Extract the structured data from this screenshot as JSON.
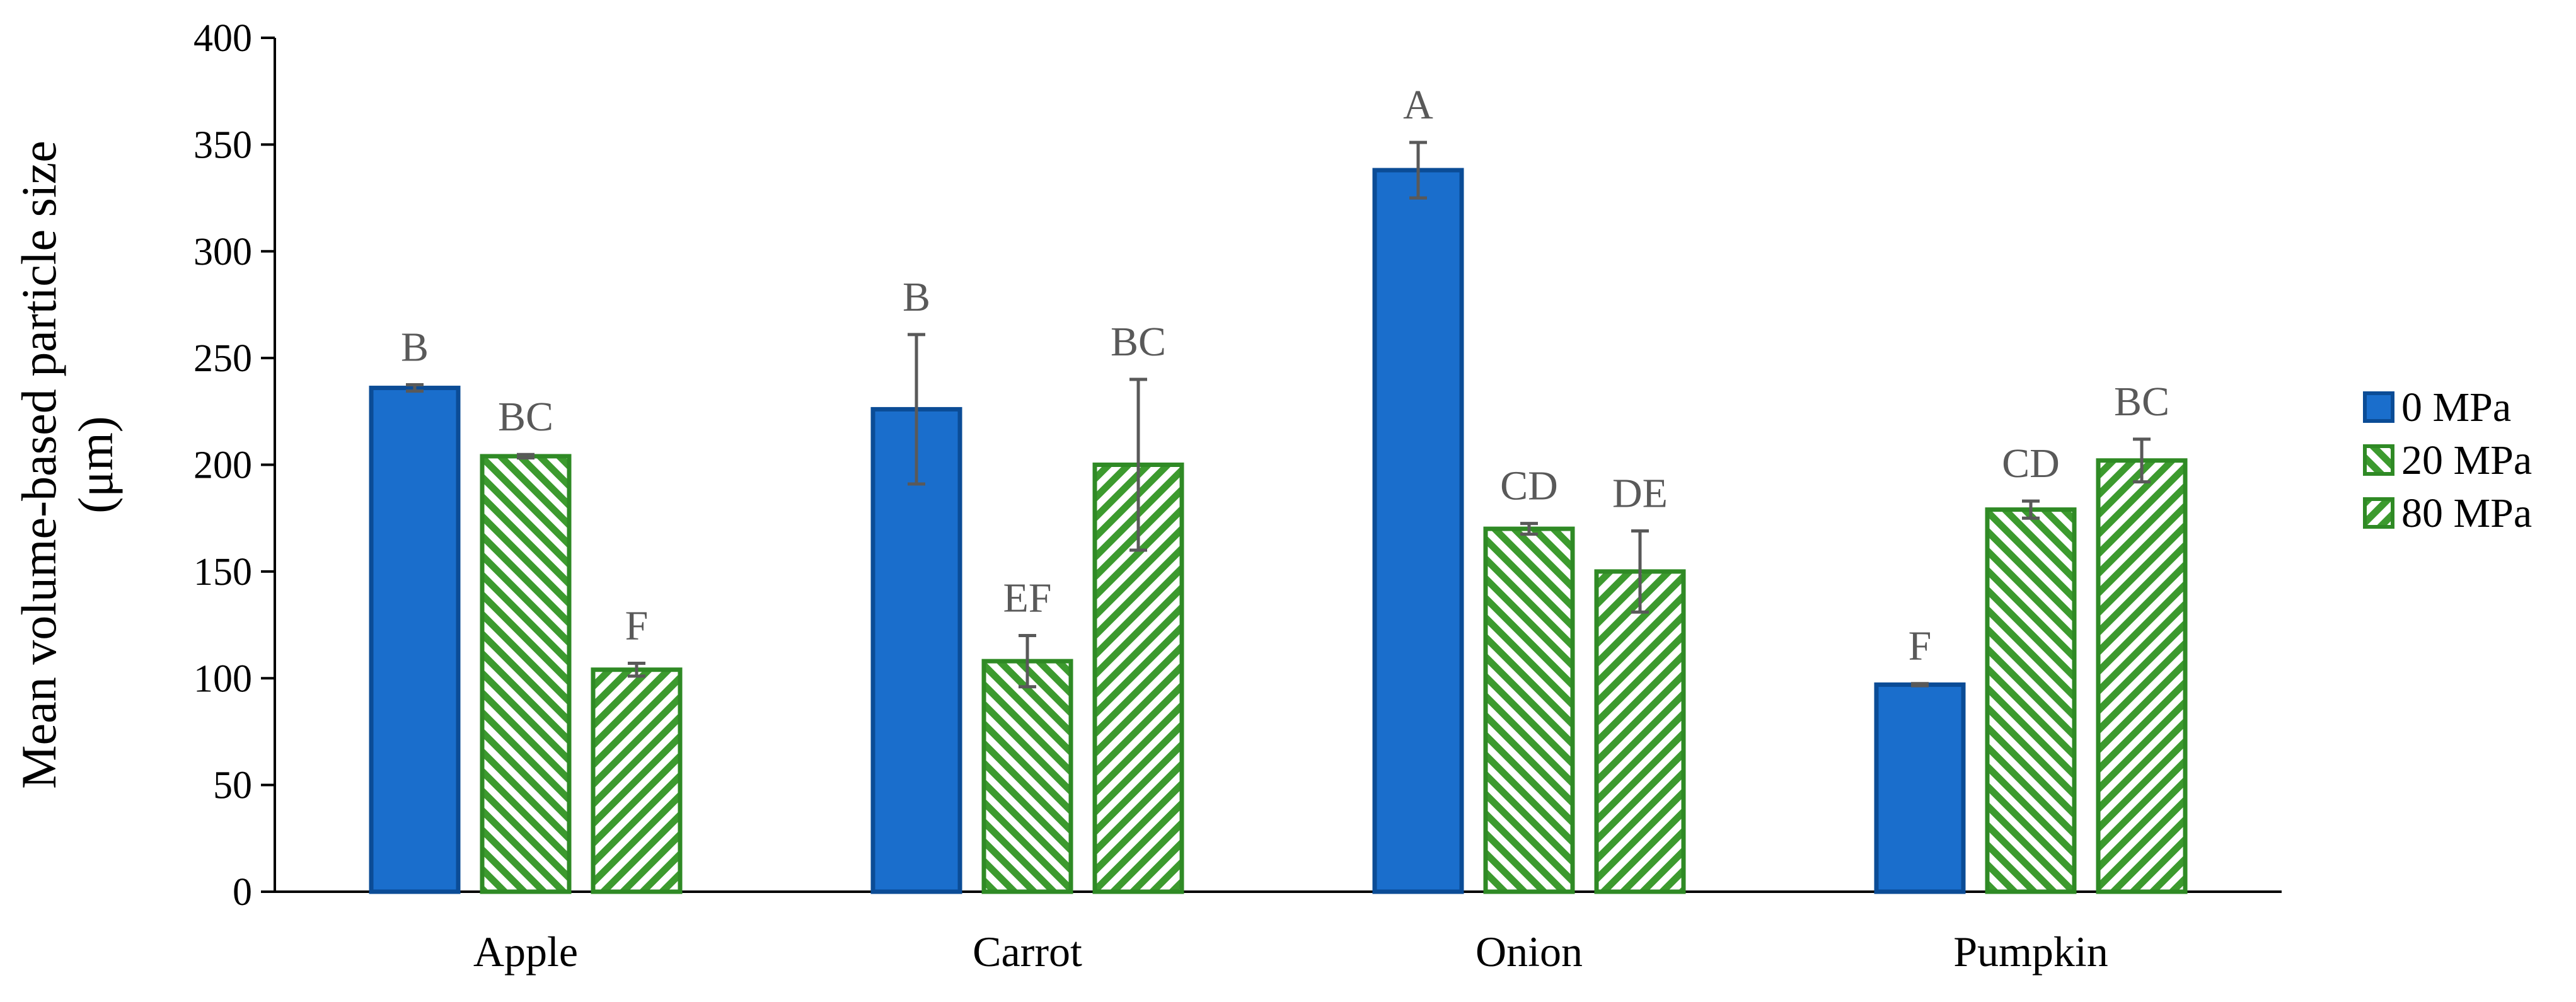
{
  "chart_data": {
    "type": "bar",
    "ylabel_lines": [
      "Mean volume-based particle size",
      "(μm)"
    ],
    "xlabel": "",
    "ylim": [
      0,
      400
    ],
    "yticks": [
      0,
      50,
      100,
      150,
      200,
      250,
      300,
      350,
      400
    ],
    "categories": [
      "Apple",
      "Carrot",
      "Onion",
      "Pumpkin"
    ],
    "legend_position": "right",
    "grid": false,
    "series": [
      {
        "name": "0 MPa",
        "fill": "#1a6ecc",
        "stroke": "#0b4c96",
        "pattern": "solid",
        "values": [
          236,
          226,
          338,
          97
        ],
        "errors": [
          1.5,
          35,
          13,
          0.5
        ],
        "letters": [
          "B",
          "B",
          "A",
          "F"
        ]
      },
      {
        "name": "20 MPa",
        "fill": "#3c9a2e",
        "stroke": "#2f8a25",
        "pattern": "diagonal-up",
        "values": [
          204,
          108,
          170,
          179
        ],
        "errors": [
          0.8,
          12,
          2.5,
          4
        ],
        "letters": [
          "BC",
          "EF",
          "CD",
          "CD"
        ]
      },
      {
        "name": "80 MPa",
        "fill": "#3c9a2e",
        "stroke": "#2f8a25",
        "pattern": "diagonal-down",
        "values": [
          104,
          200,
          150,
          202
        ],
        "errors": [
          3,
          40,
          19,
          10
        ],
        "letters": [
          "F",
          "BC",
          "DE",
          "BC"
        ]
      }
    ]
  }
}
